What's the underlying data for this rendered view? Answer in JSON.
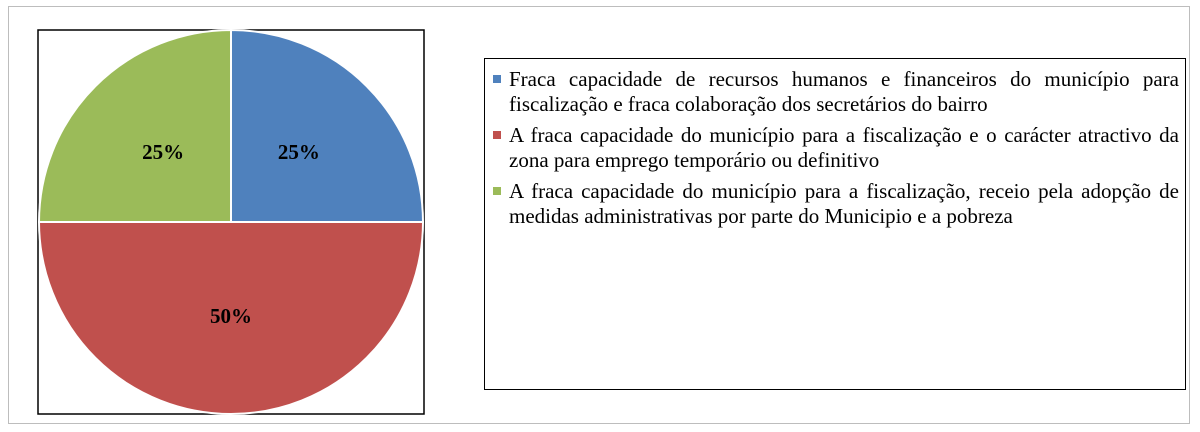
{
  "chart_data": {
    "type": "pie",
    "categories": [
      "Fraca capacidade de recursos humanos e financeiros do município para fiscalização e fraca colaboração dos secretários do bairro",
      "A fraca capacidade do município para a fiscalização e o carácter atractivo da zona para emprego temporário ou definitivo",
      "A fraca capacidade do município para a fiscalização, receio pela adopção de medidas administrativas por parte do Municipio e a pobreza"
    ],
    "values": [
      25,
      50,
      25
    ],
    "value_labels": [
      "25%",
      "50%",
      "25%"
    ],
    "colors": [
      "#4f81bd",
      "#c0504d",
      "#9bbb59"
    ]
  }
}
